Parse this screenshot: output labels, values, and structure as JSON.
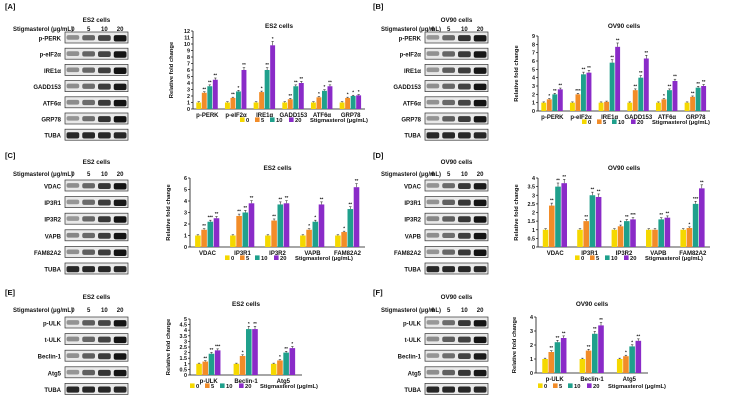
{
  "colors": {
    "c0": "#F5D800",
    "c5": "#F28C28",
    "c10": "#1FA08C",
    "c20": "#8A2BC8"
  },
  "legend": {
    "items": [
      "0",
      "5",
      "10",
      "20"
    ],
    "suffix": "Stigmasterol (μg/mL)"
  },
  "panels": [
    {
      "letter": "[A]",
      "cell": "ES2 cells",
      "treatment": "Stigmasterol (μg/mL)",
      "doses": [
        "0",
        "5",
        "10",
        "20"
      ],
      "blots": [
        "p-PERK",
        "p-eIF2α",
        "IRE1α",
        "GADD153",
        "ATF6α",
        "GRP78",
        "TUBA"
      ]
    },
    {
      "letter": "[B]",
      "cell": "OV90 cells",
      "treatment": "Stigmasterol (μg/mL)",
      "doses": [
        "0",
        "5",
        "10",
        "20"
      ],
      "blots": [
        "p-PERK",
        "p-eIF2α",
        "IRE1α",
        "GADD153",
        "ATF6α",
        "GRP78",
        "TUBA"
      ]
    },
    {
      "letter": "[C]",
      "cell": "ES2 cells",
      "treatment": "Stigmasterol (μg/mL)",
      "doses": [
        "0",
        "5",
        "10",
        "20"
      ],
      "blots": [
        "VDAC",
        "IP3R1",
        "IP3R2",
        "VAPB",
        "FAM82A2",
        "TUBA"
      ]
    },
    {
      "letter": "[D]",
      "cell": "OV90 cells",
      "treatment": "Stigmasterol (μg/mL)",
      "doses": [
        "0",
        "5",
        "10",
        "20"
      ],
      "blots": [
        "VDAC",
        "IP3R1",
        "IP3R2",
        "VAPB",
        "FAM82A2",
        "TUBA"
      ]
    },
    {
      "letter": "[E]",
      "cell": "ES2 cells",
      "treatment": "Stigmasterol (μg/mL)",
      "doses": [
        "0",
        "5",
        "10",
        "20"
      ],
      "blots": [
        "p-ULK",
        "t-ULK",
        "Beclin-1",
        "Atg5",
        "TUBA"
      ]
    },
    {
      "letter": "[F]",
      "cell": "OV90 cells",
      "treatment": "Stigmasterol (μg/mL)",
      "doses": [
        "0",
        "5",
        "10",
        "20"
      ],
      "blots": [
        "p-ULK",
        "t-ULK",
        "Beclin-1",
        "Atg5",
        "TUBA"
      ]
    }
  ],
  "chart_data": [
    {
      "type": "bar",
      "title": "ES2 cells",
      "xlabel": "",
      "ylabel": "Relative fold change",
      "ylim": [
        0,
        12
      ],
      "yticks": [
        "0",
        "1",
        "2",
        "3",
        "4",
        "5",
        "6",
        "7",
        "8",
        "9",
        "10",
        "11",
        "12"
      ],
      "categories": [
        "p-PERK",
        "p-eIF2α",
        "IRE1α",
        "GADD153",
        "ATF6α",
        "GRP78"
      ],
      "series": [
        {
          "name": "0",
          "values": [
            1,
            1,
            1,
            1,
            1,
            1
          ],
          "marks": [
            "",
            "",
            "",
            "",
            "",
            ""
          ]
        },
        {
          "name": "5",
          "values": [
            2.5,
            1.7,
            2.6,
            1.5,
            1.8,
            1.7
          ],
          "marks": [
            "**",
            "**",
            "*",
            "**",
            "*",
            "*"
          ]
        },
        {
          "name": "10",
          "values": [
            3.5,
            2.7,
            6.0,
            3.5,
            2.8,
            2.0
          ],
          "marks": [
            "**",
            "*",
            "**",
            "**",
            "*",
            "*"
          ]
        },
        {
          "name": "20",
          "values": [
            4.5,
            6.0,
            9.8,
            4.0,
            3.5,
            2.1
          ],
          "marks": [
            "**",
            "**",
            "*",
            "**",
            "**",
            "*"
          ]
        }
      ]
    },
    {
      "type": "bar",
      "title": "OV90 cells",
      "xlabel": "",
      "ylabel": "Relative fold change",
      "ylim": [
        0,
        9
      ],
      "yticks": [
        "0",
        "1",
        "2",
        "3",
        "4",
        "5",
        "6",
        "7",
        "8",
        "9"
      ],
      "categories": [
        "p-PERK",
        "p-eIF2α",
        "IRE1α",
        "GADD153",
        "ATF6α",
        "GRP78"
      ],
      "series": [
        {
          "name": "0",
          "values": [
            1,
            1,
            1,
            1,
            1,
            1
          ],
          "marks": [
            "",
            "",
            "",
            "",
            "",
            ""
          ]
        },
        {
          "name": "5",
          "values": [
            1.4,
            2.0,
            1.1,
            2.5,
            1.4,
            1.7
          ],
          "marks": [
            "*",
            "***",
            "",
            "**",
            "*",
            "**"
          ]
        },
        {
          "name": "10",
          "values": [
            2.0,
            4.4,
            5.8,
            4.0,
            2.5,
            2.8
          ],
          "marks": [
            "**",
            "**",
            "**",
            "**",
            "**",
            "**"
          ]
        },
        {
          "name": "20",
          "values": [
            2.6,
            4.6,
            7.7,
            6.3,
            3.6,
            3.0
          ],
          "marks": [
            "**",
            "**",
            "**",
            "**",
            "**",
            "**"
          ]
        }
      ]
    },
    {
      "type": "bar",
      "title": "ES2 cells",
      "xlabel": "",
      "ylabel": "Relative fold change",
      "ylim": [
        0,
        6
      ],
      "yticks": [
        "0",
        "1",
        "2",
        "3",
        "4",
        "5",
        "6"
      ],
      "categories": [
        "VDAC",
        "IP3R1",
        "IP3R2",
        "VAPB",
        "FAM82A2"
      ],
      "series": [
        {
          "name": "0",
          "values": [
            1,
            1,
            1,
            1,
            1
          ],
          "marks": [
            "",
            "",
            "",
            "",
            ""
          ]
        },
        {
          "name": "5",
          "values": [
            1.5,
            2.7,
            2.3,
            1.5,
            1.3
          ],
          "marks": [
            "**",
            "**",
            "**",
            "*",
            "*"
          ]
        },
        {
          "name": "10",
          "values": [
            2.2,
            3.0,
            3.7,
            2.2,
            3.3
          ],
          "marks": [
            "***",
            "**",
            "**",
            "*",
            "**"
          ]
        },
        {
          "name": "20",
          "values": [
            2.5,
            3.8,
            3.8,
            3.7,
            5.2
          ],
          "marks": [
            "**",
            "**",
            "**",
            "**",
            "**"
          ]
        }
      ]
    },
    {
      "type": "bar",
      "title": "OV90 cells",
      "xlabel": "",
      "ylabel": "Relative fold change",
      "ylim": [
        0,
        4
      ],
      "yticks": [
        "0",
        "0.5",
        "1",
        "1.5",
        "2",
        "2.5",
        "3",
        "3.5",
        "4"
      ],
      "categories": [
        "VDAC",
        "IP3R1",
        "IP3R2",
        "VAPB",
        "FAM82A2"
      ],
      "series": [
        {
          "name": "0",
          "values": [
            1,
            1,
            1,
            1,
            1
          ],
          "marks": [
            "",
            "",
            "",
            "",
            ""
          ]
        },
        {
          "name": "5",
          "values": [
            2.4,
            1.5,
            1.2,
            1.0,
            1.1
          ],
          "marks": [
            "**",
            "**",
            "*",
            "",
            "*"
          ]
        },
        {
          "name": "10",
          "values": [
            3.5,
            3.0,
            1.5,
            1.6,
            2.5
          ],
          "marks": [
            "**",
            "**",
            "**",
            "**",
            "***"
          ]
        },
        {
          "name": "20",
          "values": [
            3.7,
            2.9,
            1.6,
            1.7,
            3.4
          ],
          "marks": [
            "**",
            "**",
            "***",
            "**",
            "**"
          ]
        }
      ]
    },
    {
      "type": "bar",
      "title": "ES2 cells",
      "xlabel": "",
      "ylabel": "Relative fold change",
      "ylim": [
        0,
        5
      ],
      "yticks": [
        "0",
        "0.5",
        "1",
        "1.5",
        "2",
        "2.5",
        "3",
        "3.5",
        "4",
        "4.5",
        "5"
      ],
      "categories": [
        "p-ULK",
        "Beclin-1",
        "Atg5"
      ],
      "series": [
        {
          "name": "0",
          "values": [
            1,
            1,
            1
          ],
          "marks": [
            "",
            "",
            ""
          ]
        },
        {
          "name": "5",
          "values": [
            1.2,
            1.7,
            1.3
          ],
          "marks": [
            "**",
            "*",
            "*"
          ]
        },
        {
          "name": "10",
          "values": [
            1.9,
            4.1,
            2.0
          ],
          "marks": [
            "**",
            "*",
            "**"
          ]
        },
        {
          "name": "20",
          "values": [
            2.2,
            4.1,
            2.4
          ],
          "marks": [
            "***",
            "**",
            "*"
          ]
        }
      ]
    },
    {
      "type": "bar",
      "title": "OV90 cells",
      "xlabel": "",
      "ylabel": "Relative fold change",
      "ylim": [
        0,
        4
      ],
      "yticks": [
        "0",
        "1",
        "2",
        "3",
        "4"
      ],
      "categories": [
        "p-ULK",
        "Beclin-1",
        "Atg5"
      ],
      "series": [
        {
          "name": "0",
          "values": [
            1,
            1,
            1
          ],
          "marks": [
            "",
            "",
            ""
          ]
        },
        {
          "name": "5",
          "values": [
            1.5,
            1.6,
            1.2
          ],
          "marks": [
            "**",
            "**",
            "*"
          ]
        },
        {
          "name": "10",
          "values": [
            2.2,
            2.8,
            1.9
          ],
          "marks": [
            "**",
            "**",
            "*"
          ]
        },
        {
          "name": "20",
          "values": [
            2.5,
            3.4,
            2.3
          ],
          "marks": [
            "**",
            "**",
            "**"
          ]
        }
      ]
    }
  ]
}
